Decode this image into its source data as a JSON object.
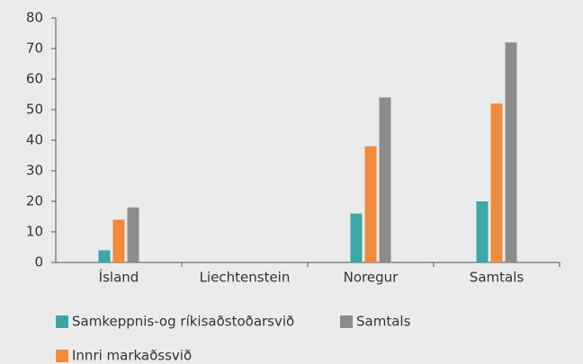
{
  "chart_data": {
    "type": "bar",
    "categories": [
      "Ísland",
      "Liechtenstein",
      "Noregur",
      "Samtals"
    ],
    "series": [
      {
        "name": "Samkeppnis-og ríkisaðstoðarsvið",
        "color": "#3aa9a6",
        "values": [
          4,
          0,
          16,
          20
        ]
      },
      {
        "name": "Innri markaðssvið",
        "color": "#f08a3c",
        "values": [
          14,
          0,
          38,
          52
        ]
      },
      {
        "name": "Samtals",
        "color": "#8c8c8c",
        "values": [
          18,
          0,
          54,
          72
        ]
      }
    ],
    "ylim": [
      0,
      80
    ],
    "yticks": [
      0,
      10,
      20,
      30,
      40,
      50,
      60,
      70,
      80
    ],
    "grid": false
  }
}
